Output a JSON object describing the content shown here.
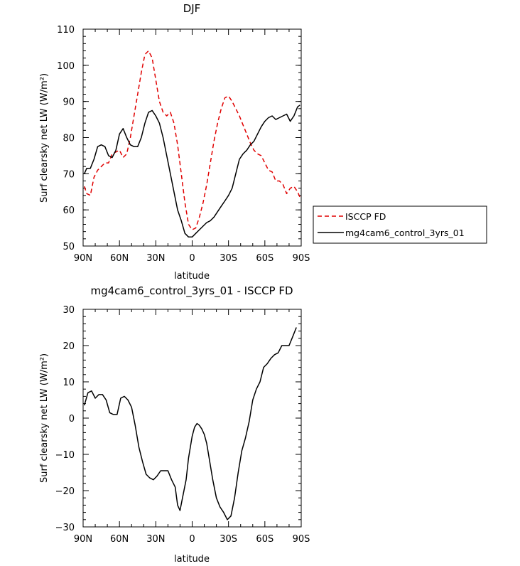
{
  "chart_data": [
    {
      "type": "line",
      "title": "DJF",
      "xlabel": "latitude",
      "ylabel": "Surf clearsky net LW (W/m²)",
      "xlim": [
        -90,
        90
      ],
      "ylim": [
        50,
        110
      ],
      "x_ticks": [
        -90,
        -60,
        -30,
        0,
        30,
        60,
        90
      ],
      "x_tick_labels": [
        "90N",
        "60N",
        "30N",
        "0",
        "30S",
        "60S",
        "90S"
      ],
      "y_ticks": [
        50,
        60,
        70,
        80,
        90,
        100,
        110
      ],
      "y_tick_labels": [
        "50",
        "60",
        "70",
        "80",
        "90",
        "100",
        "110"
      ],
      "legend_position": "outside-right",
      "series": [
        {
          "name": "ISCCP FD",
          "color": "#e00000",
          "dash": "dashed",
          "points": [
            [
              -89,
              66.5
            ],
            [
              -87,
              64.5
            ],
            [
              -84,
              64
            ],
            [
              -81,
              69
            ],
            [
              -78,
              71
            ],
            [
              -75,
              72
            ],
            [
              -72,
              73
            ],
            [
              -69,
              73
            ],
            [
              -66,
              75.5
            ],
            [
              -63,
              76
            ],
            [
              -60,
              76.5
            ],
            [
              -57,
              74.5
            ],
            [
              -54,
              75.5
            ],
            [
              -51,
              80
            ],
            [
              -48,
              86
            ],
            [
              -45,
              92
            ],
            [
              -42,
              98
            ],
            [
              -39,
              103
            ],
            [
              -36,
              104
            ],
            [
              -33,
              102
            ],
            [
              -30,
              96
            ],
            [
              -27,
              90
            ],
            [
              -24,
              87
            ],
            [
              -21,
              86
            ],
            [
              -18,
              87
            ],
            [
              -15,
              84
            ],
            [
              -12,
              78
            ],
            [
              -9,
              70
            ],
            [
              -6,
              62
            ],
            [
              -3,
              56
            ],
            [
              0,
              54.5
            ],
            [
              3,
              55
            ],
            [
              6,
              58
            ],
            [
              9,
              62
            ],
            [
              12,
              67
            ],
            [
              15,
              73
            ],
            [
              18,
              79
            ],
            [
              21,
              84
            ],
            [
              24,
              88
            ],
            [
              27,
              91
            ],
            [
              30,
              91.5
            ],
            [
              33,
              90
            ],
            [
              36,
              88
            ],
            [
              39,
              86
            ],
            [
              42,
              83.5
            ],
            [
              45,
              81
            ],
            [
              48,
              78.5
            ],
            [
              51,
              76.5
            ],
            [
              54,
              75.5
            ],
            [
              57,
              75
            ],
            [
              60,
              73
            ],
            [
              63,
              71
            ],
            [
              66,
              70.5
            ],
            [
              69,
              68
            ],
            [
              72,
              68
            ],
            [
              75,
              67
            ],
            [
              78,
              64.5
            ],
            [
              81,
              66
            ],
            [
              84,
              66.5
            ],
            [
              87,
              65
            ],
            [
              89,
              63.5
            ]
          ]
        },
        {
          "name": "mg4cam6_control_3yrs_01",
          "color": "#000000",
          "dash": "solid",
          "points": [
            [
              -89,
              70
            ],
            [
              -87,
              71.5
            ],
            [
              -84,
              71.5
            ],
            [
              -81,
              74
            ],
            [
              -78,
              77.5
            ],
            [
              -75,
              78
            ],
            [
              -72,
              77.5
            ],
            [
              -69,
              75
            ],
            [
              -66,
              74.5
            ],
            [
              -63,
              76.5
            ],
            [
              -60,
              81
            ],
            [
              -57,
              82.5
            ],
            [
              -54,
              80
            ],
            [
              -51,
              78
            ],
            [
              -48,
              77.5
            ],
            [
              -45,
              77.5
            ],
            [
              -42,
              80
            ],
            [
              -39,
              84
            ],
            [
              -36,
              87
            ],
            [
              -33,
              87.5
            ],
            [
              -30,
              86
            ],
            [
              -27,
              84
            ],
            [
              -24,
              80
            ],
            [
              -21,
              75
            ],
            [
              -18,
              70
            ],
            [
              -15,
              65
            ],
            [
              -12,
              60
            ],
            [
              -9,
              57
            ],
            [
              -6,
              53.5
            ],
            [
              -3,
              52.5
            ],
            [
              0,
              52.5
            ],
            [
              3,
              53.5
            ],
            [
              6,
              54.5
            ],
            [
              9,
              55.5
            ],
            [
              12,
              56.5
            ],
            [
              15,
              57
            ],
            [
              18,
              58
            ],
            [
              21,
              59.5
            ],
            [
              24,
              61
            ],
            [
              27,
              62.5
            ],
            [
              30,
              64
            ],
            [
              33,
              66
            ],
            [
              36,
              70
            ],
            [
              39,
              74
            ],
            [
              42,
              75.5
            ],
            [
              45,
              76.5
            ],
            [
              48,
              78
            ],
            [
              51,
              79
            ],
            [
              54,
              81
            ],
            [
              57,
              83
            ],
            [
              60,
              84.5
            ],
            [
              63,
              85.5
            ],
            [
              66,
              86
            ],
            [
              69,
              85
            ],
            [
              72,
              85.5
            ],
            [
              75,
              86
            ],
            [
              78,
              86.5
            ],
            [
              81,
              84.5
            ],
            [
              84,
              86
            ],
            [
              87,
              88.5
            ],
            [
              89,
              89
            ]
          ]
        }
      ]
    },
    {
      "type": "line",
      "title": "mg4cam6_control_3yrs_01 - ISCCP FD",
      "xlabel": "latitude",
      "ylabel": "Surf clearsky net LW (W/m²)",
      "xlim": [
        -90,
        90
      ],
      "ylim": [
        -30,
        30
      ],
      "x_ticks": [
        -90,
        -60,
        -30,
        0,
        30,
        60,
        90
      ],
      "x_tick_labels": [
        "90N",
        "60N",
        "30N",
        "0",
        "30S",
        "60S",
        "90S"
      ],
      "y_ticks": [
        -30,
        -20,
        -10,
        0,
        10,
        20,
        30
      ],
      "y_tick_labels": [
        "−30",
        "−20",
        "−10",
        "0",
        "10",
        "20",
        "30"
      ],
      "series": [
        {
          "color": "#000000",
          "dash": "solid",
          "points": [
            [
              -89,
              3.5
            ],
            [
              -86,
              7
            ],
            [
              -83,
              7.5
            ],
            [
              -80,
              5.5
            ],
            [
              -77,
              6.5
            ],
            [
              -74,
              6.5
            ],
            [
              -71,
              5
            ],
            [
              -68,
              1.5
            ],
            [
              -65,
              1
            ],
            [
              -62,
              1
            ],
            [
              -59,
              5.5
            ],
            [
              -56,
              6
            ],
            [
              -53,
              5
            ],
            [
              -50,
              3
            ],
            [
              -47,
              -2
            ],
            [
              -44,
              -8
            ],
            [
              -41,
              -12
            ],
            [
              -38,
              -15.5
            ],
            [
              -35,
              -16.5
            ],
            [
              -32,
              -17
            ],
            [
              -29,
              -16
            ],
            [
              -26,
              -14.5
            ],
            [
              -23,
              -14.5
            ],
            [
              -20,
              -14.5
            ],
            [
              -17,
              -17
            ],
            [
              -14,
              -19
            ],
            [
              -12,
              -24
            ],
            [
              -10,
              -25.5
            ],
            [
              -8,
              -22
            ],
            [
              -5,
              -17
            ],
            [
              -3,
              -11
            ],
            [
              0,
              -5
            ],
            [
              2,
              -2.5
            ],
            [
              4,
              -1.5
            ],
            [
              6,
              -2
            ],
            [
              8,
              -3
            ],
            [
              10,
              -4.5
            ],
            [
              12,
              -7
            ],
            [
              14,
              -11
            ],
            [
              17,
              -17
            ],
            [
              20,
              -22
            ],
            [
              23,
              -24.5
            ],
            [
              26,
              -26
            ],
            [
              29,
              -28
            ],
            [
              32,
              -27
            ],
            [
              35,
              -22
            ],
            [
              38,
              -15
            ],
            [
              41,
              -9
            ],
            [
              44,
              -5.5
            ],
            [
              47,
              -1
            ],
            [
              50,
              5
            ],
            [
              53,
              8
            ],
            [
              56,
              10
            ],
            [
              59,
              14
            ],
            [
              62,
              15
            ],
            [
              65,
              16.5
            ],
            [
              68,
              17.5
            ],
            [
              71,
              18
            ],
            [
              74,
              20
            ],
            [
              77,
              20
            ],
            [
              80,
              20
            ],
            [
              83,
              22.5
            ],
            [
              86,
              25
            ]
          ]
        }
      ]
    }
  ]
}
